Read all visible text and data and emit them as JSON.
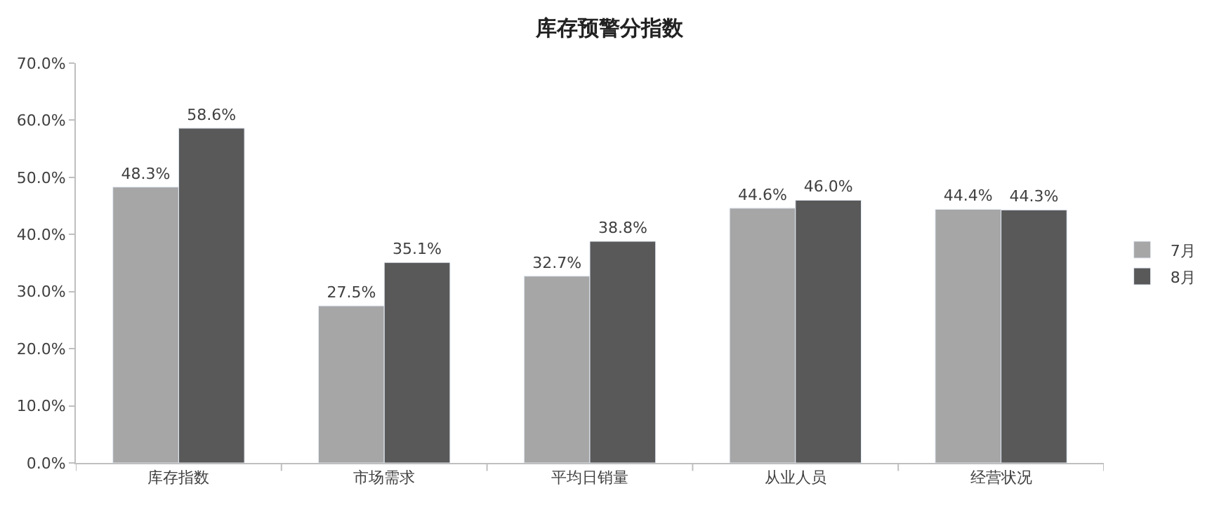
{
  "chart_data": {
    "type": "bar",
    "title": "库存预警分指数",
    "categories": [
      "库存指数",
      "市场需求",
      "平均日销量",
      "从业人员",
      "经营状况"
    ],
    "series": [
      {
        "name": "7月",
        "color": "#a6a6a6",
        "values": [
          48.3,
          27.5,
          32.7,
          44.6,
          44.4
        ],
        "value_labels": [
          "48.3%",
          "27.5%",
          "32.7%",
          "44.6%",
          "44.4%"
        ]
      },
      {
        "name": "8月",
        "color": "#595959",
        "values": [
          58.6,
          35.1,
          38.8,
          46.0,
          44.3
        ],
        "value_labels": [
          "58.6%",
          "35.1%",
          "38.8%",
          "46.0%",
          "44.3%"
        ]
      }
    ],
    "ylim": [
      0,
      70
    ],
    "yticks": [
      {
        "value": 0,
        "label": "0.0%"
      },
      {
        "value": 10,
        "label": "10.0%"
      },
      {
        "value": 20,
        "label": "20.0%"
      },
      {
        "value": 30,
        "label": "30.0%"
      },
      {
        "value": 40,
        "label": "40.0%"
      },
      {
        "value": 50,
        "label": "50.0%"
      },
      {
        "value": 60,
        "label": "60.0%"
      },
      {
        "value": 70,
        "label": "70.0%"
      }
    ],
    "legend": "right"
  }
}
